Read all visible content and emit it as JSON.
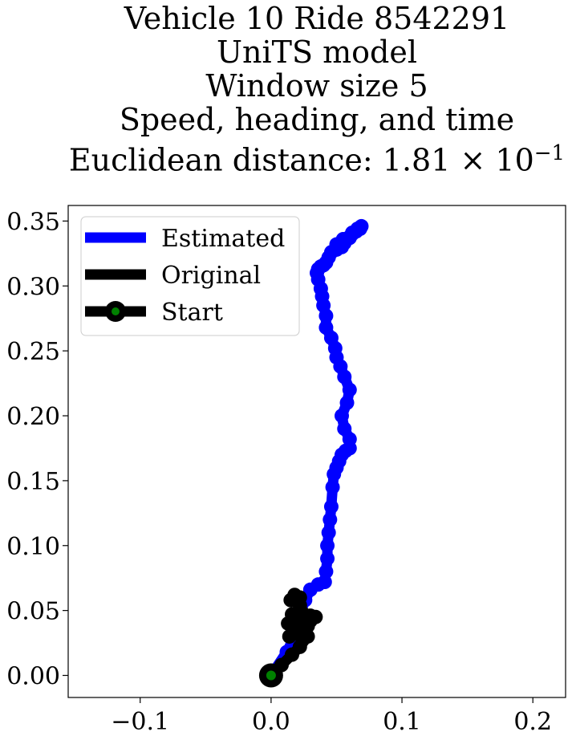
{
  "chart_data": {
    "type": "line",
    "title_lines": [
      "Vehicle 10 Ride 8542291",
      "UniTS model",
      "Window size 5",
      "Speed, heading, and time"
    ],
    "title_distance_prefix": "Euclidean distance: 1.81",
    "title_distance_times": "×",
    "title_distance_base": "10",
    "title_distance_exponent": "−1",
    "xlabel": "",
    "ylabel": "",
    "xlim": [
      -0.155,
      0.225
    ],
    "ylim": [
      -0.017,
      0.362
    ],
    "xticks": [
      -0.1,
      0.0,
      0.1,
      0.2
    ],
    "xtick_labels": [
      "−0.1",
      "0.0",
      "0.1",
      "0.2"
    ],
    "yticks": [
      0.0,
      0.05,
      0.1,
      0.15,
      0.2,
      0.25,
      0.3,
      0.35
    ],
    "ytick_labels": [
      "0.00",
      "0.05",
      "0.10",
      "0.15",
      "0.20",
      "0.25",
      "0.30",
      "0.35"
    ],
    "grid": false,
    "legend_position": "top-left",
    "series": [
      {
        "name": "Estimated",
        "color": "#0000ff",
        "x": [
          0.0,
          0.012,
          0.02,
          0.022,
          0.026,
          0.03,
          0.036,
          0.041,
          0.042,
          0.043,
          0.043,
          0.044,
          0.045,
          0.046,
          0.047,
          0.048,
          0.05,
          0.052,
          0.054,
          0.057,
          0.06,
          0.06,
          0.056,
          0.054,
          0.058,
          0.06,
          0.056,
          0.053,
          0.05,
          0.049,
          0.046,
          0.042,
          0.042,
          0.04,
          0.039,
          0.038,
          0.036,
          0.035,
          0.036,
          0.038,
          0.04,
          0.042,
          0.044,
          0.046,
          0.05,
          0.054,
          0.056,
          0.06,
          0.062,
          0.065,
          0.068,
          0.069,
          0.066,
          0.062,
          0.055,
          0.05
        ],
        "y": [
          0.0,
          0.018,
          0.034,
          0.047,
          0.058,
          0.066,
          0.07,
          0.072,
          0.08,
          0.09,
          0.1,
          0.11,
          0.12,
          0.13,
          0.145,
          0.155,
          0.16,
          0.165,
          0.17,
          0.173,
          0.175,
          0.182,
          0.19,
          0.2,
          0.21,
          0.22,
          0.23,
          0.238,
          0.245,
          0.252,
          0.26,
          0.268,
          0.277,
          0.285,
          0.292,
          0.298,
          0.305,
          0.31,
          0.313,
          0.315,
          0.316,
          0.318,
          0.322,
          0.326,
          0.328,
          0.33,
          0.333,
          0.337,
          0.34,
          0.342,
          0.344,
          0.346,
          0.344,
          0.341,
          0.336,
          0.332
        ]
      },
      {
        "name": "Original",
        "color": "#000000",
        "x": [
          0.0,
          0.008,
          0.016,
          0.022,
          0.028,
          0.026,
          0.03,
          0.024,
          0.018,
          0.013,
          0.016,
          0.022,
          0.03,
          0.034,
          0.028,
          0.02,
          0.014,
          0.02,
          0.026,
          0.024,
          0.022,
          0.022,
          0.018,
          0.015
        ],
        "y": [
          0.0,
          0.008,
          0.016,
          0.022,
          0.03,
          0.036,
          0.042,
          0.046,
          0.044,
          0.04,
          0.047,
          0.05,
          0.046,
          0.045,
          0.038,
          0.032,
          0.03,
          0.036,
          0.04,
          0.048,
          0.054,
          0.06,
          0.062,
          0.058
        ]
      }
    ],
    "start_point": {
      "name": "Start",
      "x": 0.0,
      "y": 0.0,
      "edge_color": "#000000",
      "face_color": "#008000"
    }
  }
}
